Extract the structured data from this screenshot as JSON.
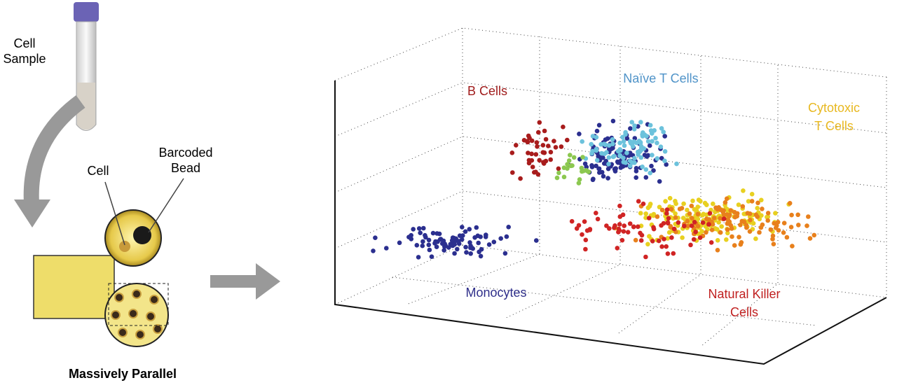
{
  "left_panel": {
    "sample_label": [
      "Cell",
      "Sample"
    ],
    "cell_label": "Cell",
    "bead_label": [
      "Barcoded",
      "Bead"
    ],
    "caption": "Massively Parallel"
  },
  "plot_labels": {
    "b_cells": "B Cells",
    "naive_t_cells": "Naïve T Cells",
    "cytotoxic_t_cells": [
      "Cytotoxic",
      "T Cells"
    ],
    "monocytes": "Monocytes",
    "nk_cells": [
      "Natural Killer",
      "Cells"
    ]
  }
}
